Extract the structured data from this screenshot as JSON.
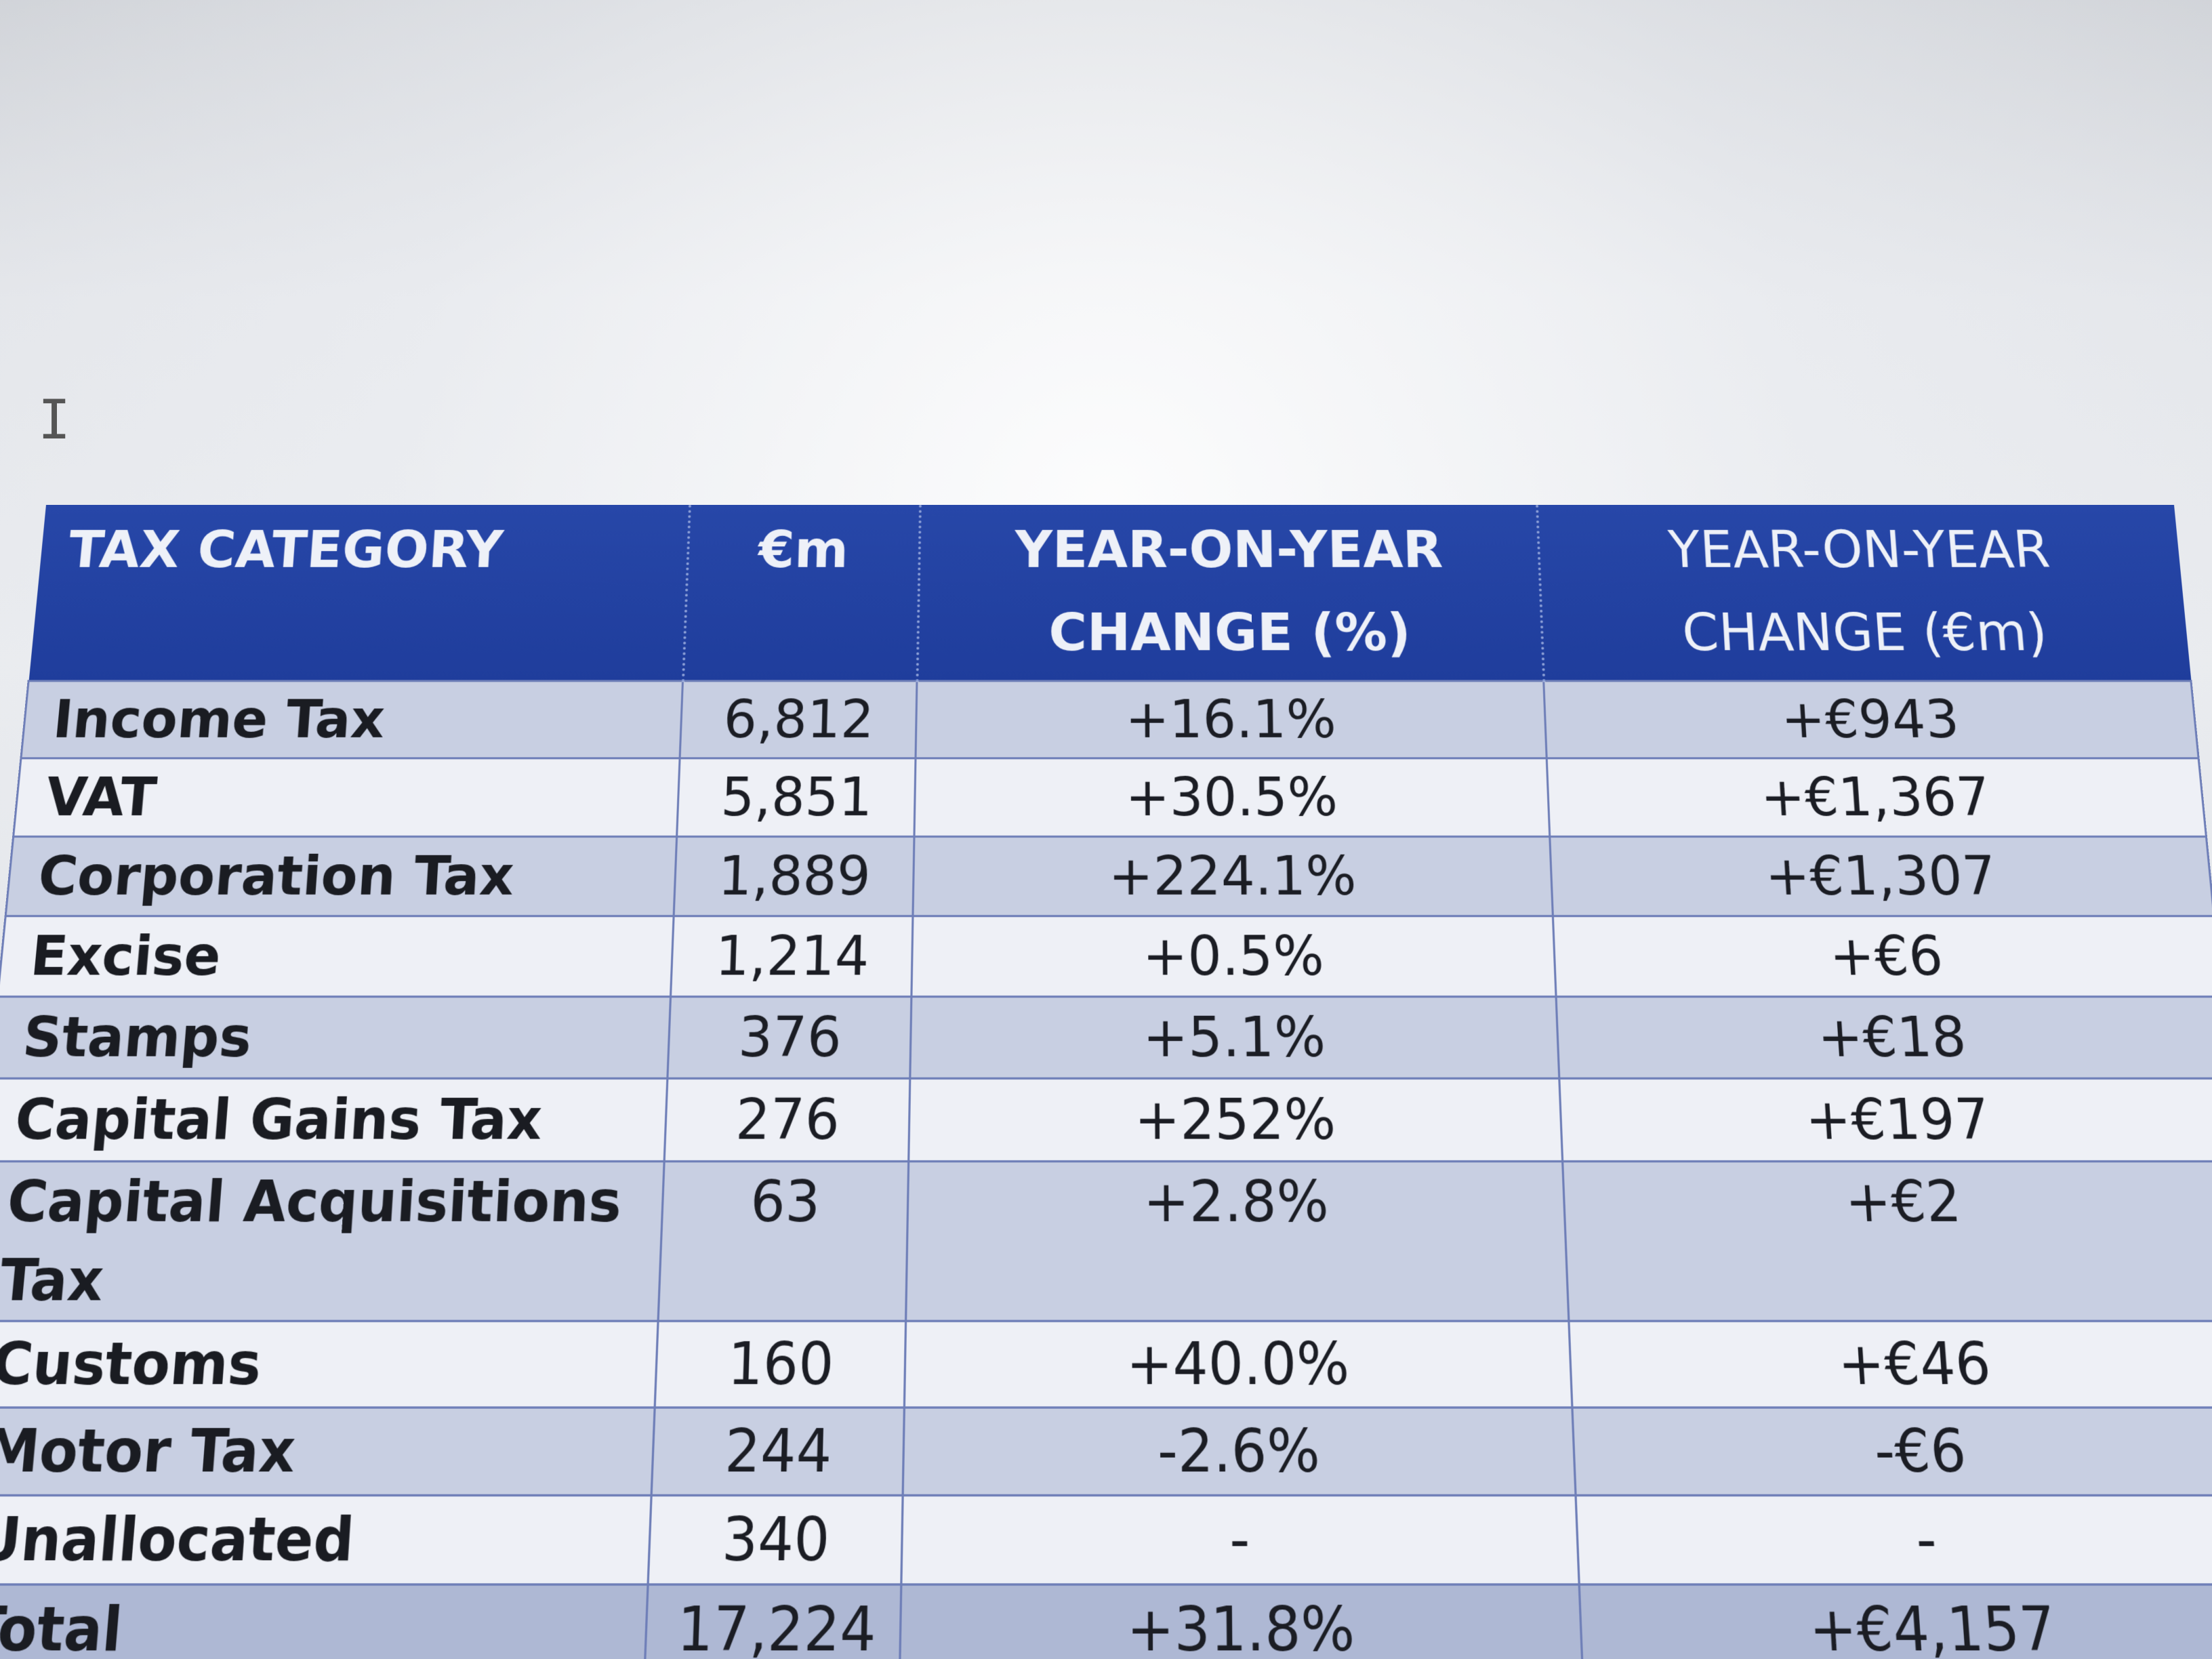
{
  "table": {
    "headers": {
      "category": "TAX CATEGORY",
      "amount": "€m",
      "yoy_pct": "YEAR-ON-YEAR CHANGE (%)",
      "yoy_eur": "YEAR-ON-YEAR CHANGE (€m)"
    },
    "rows": [
      {
        "category": "Income Tax",
        "amount": "6,812",
        "yoy_pct": "+16.1%",
        "yoy_eur": "+€943"
      },
      {
        "category": "VAT",
        "amount": "5,851",
        "yoy_pct": "+30.5%",
        "yoy_eur": "+€1,367"
      },
      {
        "category": "Corporation Tax",
        "amount": "1,889",
        "yoy_pct": "+224.1%",
        "yoy_eur": "+€1,307"
      },
      {
        "category": "Excise",
        "amount": "1,214",
        "yoy_pct": "+0.5%",
        "yoy_eur": "+€6"
      },
      {
        "category": "Stamps",
        "amount": "376",
        "yoy_pct": "+5.1%",
        "yoy_eur": "+€18"
      },
      {
        "category": "Capital Gains Tax",
        "amount": "276",
        "yoy_pct": "+252%",
        "yoy_eur": "+€197"
      },
      {
        "category": "Capital Acquisitions Tax",
        "amount": "63",
        "yoy_pct": "+2.8%",
        "yoy_eur": "+€2"
      },
      {
        "category": "Customs",
        "amount": "160",
        "yoy_pct": "+40.0%",
        "yoy_eur": "+€46"
      },
      {
        "category": "Motor Tax",
        "amount": "244",
        "yoy_pct": "-2.6%",
        "yoy_eur": "-€6"
      },
      {
        "category": "Unallocated",
        "amount": "340",
        "yoy_pct": "-",
        "yoy_eur": "-"
      },
      {
        "category": "Total",
        "amount": "17,224",
        "yoy_pct": "+31.8%",
        "yoy_eur": "+€4,157"
      }
    ]
  },
  "colors": {
    "header_bg": "#1f3d9c",
    "header_text": "#eef1f8",
    "row_shaded": "#c8cfe2",
    "row_light": "#eef0f6",
    "border": "#6f7fb8"
  },
  "icons": {
    "cursor": "text-cursor-icon"
  }
}
